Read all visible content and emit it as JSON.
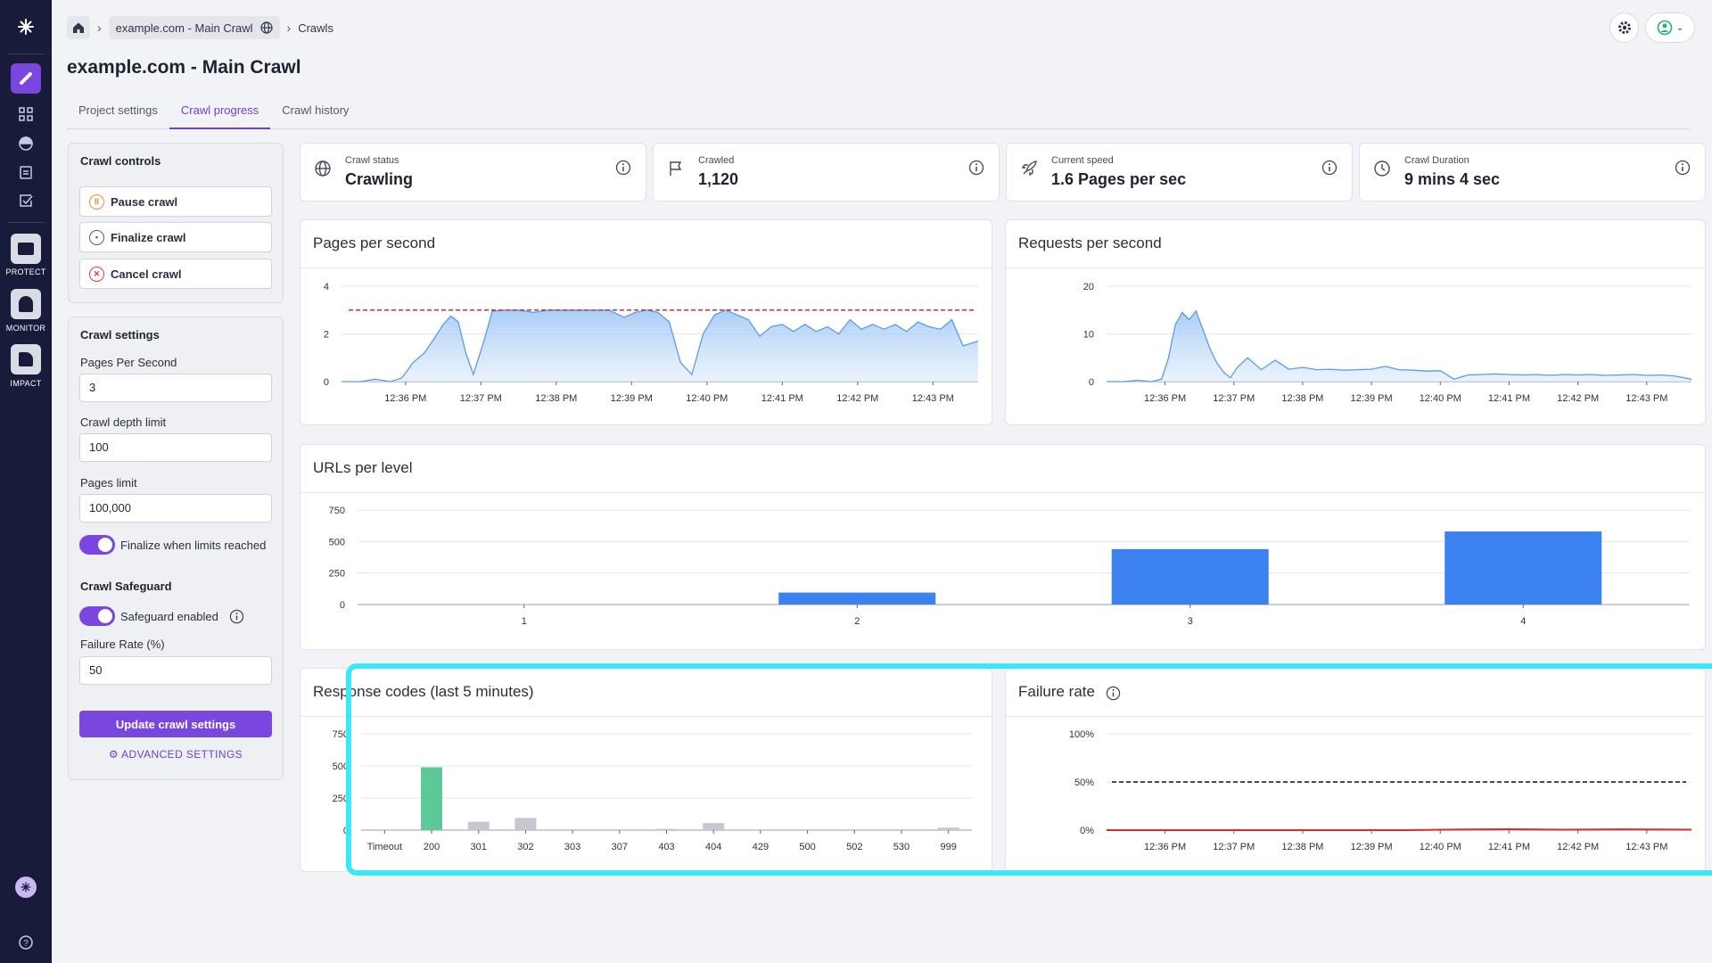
{
  "rail": {
    "labels": {
      "protect": "PROTECT",
      "monitor": "MONITOR",
      "impact": "IMPACT"
    }
  },
  "breadcrumb": {
    "project": "example.com - Main Crawl",
    "current": "Crawls"
  },
  "page_title": "example.com - Main Crawl",
  "tabs": [
    {
      "label": "Project settings"
    },
    {
      "label": "Crawl progress"
    },
    {
      "label": "Crawl history"
    }
  ],
  "crawl_controls": {
    "title": "Crawl controls",
    "pause": "Pause crawl",
    "finalize": "Finalize crawl",
    "cancel": "Cancel crawl"
  },
  "crawl_settings": {
    "title": "Crawl settings",
    "pps_label": "Pages Per Second",
    "pps_value": "3",
    "depth_label": "Crawl depth limit",
    "depth_value": "100",
    "pages_label": "Pages limit",
    "pages_value": "100,000",
    "finalize_toggle": "Finalize when limits reached",
    "safeguard_title": "Crawl Safeguard",
    "safeguard_toggle": "Safeguard enabled",
    "failure_label": "Failure Rate (%)",
    "failure_value": "50",
    "update_button": "Update crawl settings",
    "advanced": "ADVANCED SETTINGS"
  },
  "stats": [
    {
      "label": "Crawl status",
      "value": "Crawling"
    },
    {
      "label": "Crawled",
      "value": "1,120"
    },
    {
      "label": "Current speed",
      "value": "1.6 Pages per sec"
    },
    {
      "label": "Crawl Duration",
      "value": "9 mins 4 sec"
    }
  ],
  "colors": {
    "accent": "#7a46e0",
    "bar_blue": "#3b82f0",
    "bar_green": "#5ec998",
    "bar_gray": "#c5c8d1",
    "line_blue": "#5b9be8",
    "limit_red": "#d62b2b"
  },
  "chart_data": [
    {
      "type": "area",
      "title": "Pages per second",
      "x_ticks": [
        "12:36 PM",
        "12:37 PM",
        "12:38 PM",
        "12:39 PM",
        "12:40 PM",
        "12:41 PM",
        "12:42 PM",
        "12:43 PM"
      ],
      "y_ticks": [
        "0",
        "2",
        "4"
      ],
      "ylim": [
        0,
        4
      ],
      "x_range": [
        -0.85,
        7.6
      ],
      "reference_line": 3,
      "series": [
        {
          "x": [
            -0.85,
            -0.6,
            -0.4,
            -0.2,
            -0.05,
            0.1,
            0.25,
            0.4,
            0.5,
            0.6,
            0.7,
            0.8,
            0.9,
            1.05,
            1.15,
            1.3,
            1.5,
            1.7,
            1.9,
            2.1,
            2.3,
            2.5,
            2.7,
            2.9,
            3.05,
            3.2,
            3.35,
            3.5,
            3.65,
            3.8,
            3.95,
            4.1,
            4.25,
            4.4,
            4.55,
            4.7,
            4.85,
            5.0,
            5.15,
            5.3,
            5.45,
            5.6,
            5.75,
            5.9,
            6.05,
            6.2,
            6.35,
            6.5,
            6.65,
            6.8,
            6.95,
            7.1,
            7.25,
            7.4,
            7.6
          ],
          "y": [
            0,
            0,
            0.1,
            0,
            0.15,
            0.8,
            1.2,
            1.9,
            2.4,
            2.75,
            2.5,
            1.2,
            0.3,
            1.8,
            2.95,
            3.0,
            3.0,
            2.9,
            3.0,
            3.0,
            3.0,
            3.0,
            3.0,
            2.7,
            2.9,
            3.0,
            2.9,
            2.5,
            0.8,
            0.3,
            2.0,
            2.8,
            3.0,
            2.8,
            2.6,
            1.9,
            2.3,
            2.4,
            2.1,
            2.4,
            2.1,
            2.3,
            2.0,
            2.6,
            2.2,
            2.4,
            2.2,
            2.4,
            2.1,
            2.5,
            2.3,
            2.2,
            2.6,
            1.5,
            1.7
          ]
        }
      ]
    },
    {
      "type": "area",
      "title": "Requests per second",
      "x_ticks": [
        "12:36 PM",
        "12:37 PM",
        "12:38 PM",
        "12:39 PM",
        "12:40 PM",
        "12:41 PM",
        "12:42 PM",
        "12:43 PM"
      ],
      "y_ticks": [
        "0",
        "10",
        "20"
      ],
      "ylim": [
        0,
        20
      ],
      "x_range": [
        -0.85,
        7.65
      ],
      "series": [
        {
          "x": [
            -0.85,
            -0.6,
            -0.4,
            -0.2,
            -0.05,
            0.05,
            0.15,
            0.25,
            0.35,
            0.45,
            0.55,
            0.65,
            0.75,
            0.85,
            0.95,
            1.05,
            1.2,
            1.4,
            1.6,
            1.8,
            2.0,
            2.2,
            2.4,
            2.6,
            2.8,
            3.0,
            3.2,
            3.4,
            3.6,
            3.8,
            4.0,
            4.2,
            4.4,
            4.6,
            4.8,
            5.0,
            5.2,
            5.4,
            5.6,
            5.8,
            6.0,
            6.2,
            6.4,
            6.6,
            6.8,
            7.0,
            7.2,
            7.4,
            7.65
          ],
          "y": [
            0,
            0,
            0.3,
            0,
            0.5,
            5,
            12,
            14.5,
            13,
            14.8,
            11,
            7,
            4,
            2,
            0.8,
            3,
            5,
            2.5,
            4.5,
            2.6,
            3,
            2.5,
            2.6,
            2.4,
            2.5,
            2.6,
            3.2,
            2.5,
            2.4,
            2.2,
            2.3,
            0.5,
            1.4,
            1.5,
            1.6,
            1.5,
            1.4,
            1.5,
            1.3,
            1.5,
            1.4,
            1.5,
            1.3,
            1.4,
            1.5,
            1.3,
            1.4,
            1.2,
            0.5
          ]
        }
      ]
    },
    {
      "type": "bar",
      "title": "URLs per level",
      "categories": [
        "1",
        "2",
        "3",
        "4"
      ],
      "values": [
        0,
        95,
        440,
        580
      ],
      "y_ticks": [
        "0",
        "250",
        "500",
        "750"
      ],
      "ylim": [
        0,
        750
      ]
    },
    {
      "type": "bar",
      "title": "Response codes (last 5 minutes)",
      "categories": [
        "Timeout",
        "200",
        "301",
        "302",
        "303",
        "307",
        "403",
        "404",
        "429",
        "500",
        "502",
        "530",
        "999"
      ],
      "values": [
        0,
        490,
        65,
        95,
        0,
        0,
        10,
        55,
        0,
        0,
        0,
        0,
        20
      ],
      "y_ticks": [
        "0",
        "250",
        "500",
        "750"
      ],
      "ylim": [
        0,
        750
      ]
    },
    {
      "type": "line",
      "title": "Failure rate",
      "x_ticks": [
        "12:36 PM",
        "12:37 PM",
        "12:38 PM",
        "12:39 PM",
        "12:40 PM",
        "12:41 PM",
        "12:42 PM",
        "12:43 PM"
      ],
      "y_ticks": [
        "0%",
        "50%",
        "100%"
      ],
      "ylim": [
        0,
        100
      ],
      "x_range": [
        -0.85,
        7.65
      ],
      "threshold": 50,
      "series": [
        {
          "x": [
            -0.85,
            3.5,
            4.2,
            5.0,
            5.8,
            6.6,
            7.4,
            7.65
          ],
          "y": [
            0,
            0,
            0.6,
            0.9,
            0.5,
            0.8,
            0.6,
            0.5
          ]
        }
      ]
    }
  ]
}
